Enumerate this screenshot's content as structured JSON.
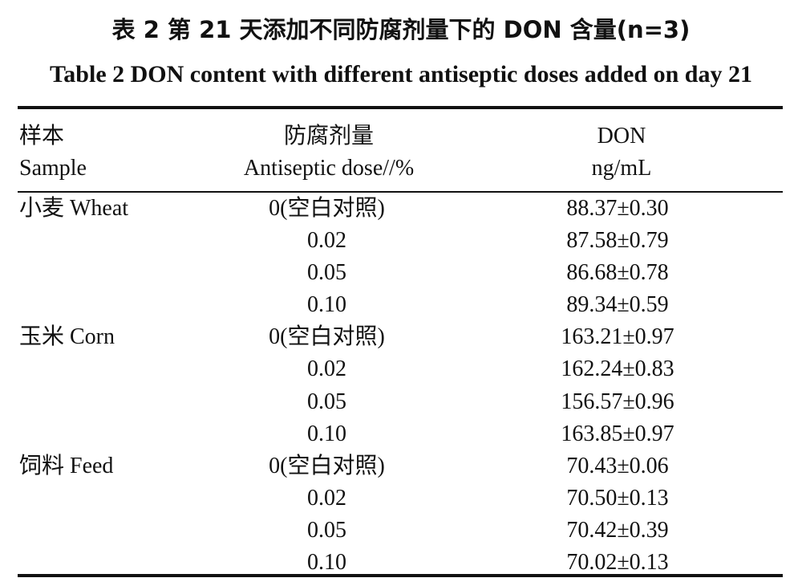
{
  "title_cn": "表 2   第 21 天添加不同防腐剂量下的 DON 含量(n=3)",
  "title_en": "Table 2    DON content with different antiseptic doses added on day 21",
  "headers": {
    "sample_cn": "样本",
    "sample_en": "Sample",
    "dose_cn": "防腐剂量",
    "dose_en": "Antiseptic dose//%",
    "don_label": "DON",
    "don_unit": "ng/mL"
  },
  "rows": [
    {
      "sample": "小麦 Wheat",
      "dose": "0(空白对照)",
      "don": "88.37±0.30"
    },
    {
      "sample": "",
      "dose": "0.02",
      "don": "87.58±0.79"
    },
    {
      "sample": "",
      "dose": "0.05",
      "don": "86.68±0.78"
    },
    {
      "sample": "",
      "dose": "0.10",
      "don": "89.34±0.59"
    },
    {
      "sample": "玉米 Corn",
      "dose": "0(空白对照)",
      "don": "163.21±0.97"
    },
    {
      "sample": "",
      "dose": "0.02",
      "don": "162.24±0.83"
    },
    {
      "sample": "",
      "dose": "0.05",
      "don": "156.57±0.96"
    },
    {
      "sample": "",
      "dose": "0.10",
      "don": "163.85±0.97"
    },
    {
      "sample": "饲料 Feed",
      "dose": "0(空白对照)",
      "don": "70.43±0.06"
    },
    {
      "sample": "",
      "dose": "0.02",
      "don": "70.50±0.13"
    },
    {
      "sample": "",
      "dose": "0.05",
      "don": "70.42±0.39"
    },
    {
      "sample": "",
      "dose": "0.10",
      "don": "70.02±0.13"
    }
  ]
}
